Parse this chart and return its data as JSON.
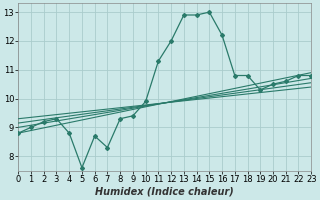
{
  "bg_color": "#cce8e8",
  "grid_color": "#aacccc",
  "line_color": "#2a7a6a",
  "x_data_main": [
    0,
    1,
    2,
    3,
    4,
    5,
    6,
    7,
    8,
    9,
    10,
    11,
    12,
    13,
    14,
    15,
    16,
    17,
    18,
    19,
    20,
    21,
    22,
    23
  ],
  "y_data_main": [
    8.8,
    9.0,
    9.2,
    9.3,
    8.8,
    7.6,
    8.7,
    8.3,
    9.3,
    9.4,
    9.9,
    11.3,
    12.0,
    12.9,
    12.9,
    13.0,
    12.2,
    10.8,
    10.8,
    10.3,
    10.5,
    10.6,
    10.8,
    10.8
  ],
  "trend_lines": [
    {
      "x": [
        0,
        23
      ],
      "y": [
        8.8,
        10.9
      ]
    },
    {
      "x": [
        0,
        23
      ],
      "y": [
        9.0,
        10.7
      ]
    },
    {
      "x": [
        0,
        23
      ],
      "y": [
        9.15,
        10.55
      ]
    },
    {
      "x": [
        0,
        23
      ],
      "y": [
        9.3,
        10.4
      ]
    }
  ],
  "xlabel": "Humidex (Indice chaleur)",
  "xlim": [
    0,
    23
  ],
  "ylim": [
    7.5,
    13.3
  ],
  "xticks": [
    0,
    1,
    2,
    3,
    4,
    5,
    6,
    7,
    8,
    9,
    10,
    11,
    12,
    13,
    14,
    15,
    16,
    17,
    18,
    19,
    20,
    21,
    22,
    23
  ],
  "yticks": [
    8,
    9,
    10,
    11,
    12,
    13
  ],
  "xlabel_fontsize": 7,
  "tick_fontsize": 6
}
